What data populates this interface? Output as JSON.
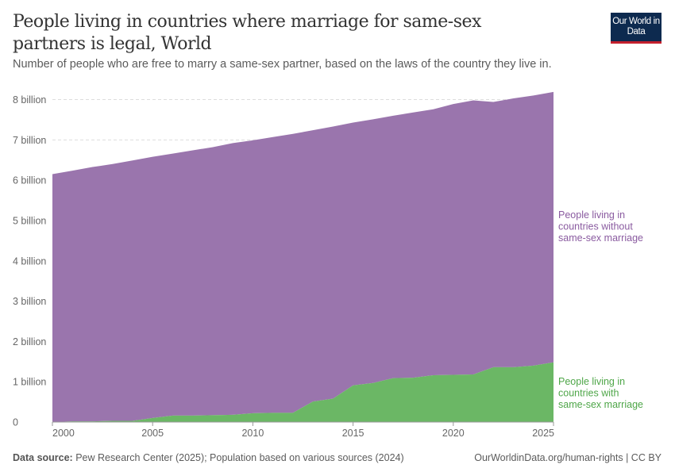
{
  "title": "People living in countries where marriage for same-sex partners is legal, World",
  "subtitle": "Number of people who are free to marry a same-sex partner, based on the laws of the country they live in.",
  "logo": "Our World in Data",
  "footer": {
    "source_label": "Data source:",
    "source_text": "Pew Research Center (2025); Population based on various sources (2024)",
    "right": "OurWorldinData.org/human-rights | CC BY"
  },
  "chart_data": {
    "type": "area",
    "stacked": true,
    "x": [
      2000,
      2001,
      2002,
      2003,
      2004,
      2005,
      2006,
      2007,
      2008,
      2009,
      2010,
      2011,
      2012,
      2013,
      2014,
      2015,
      2016,
      2017,
      2018,
      2019,
      2020,
      2021,
      2022,
      2023,
      2024,
      2025
    ],
    "series": [
      {
        "name": "People living in countries with same-sex marriage",
        "color": "#6bb765",
        "values": [
          0.0,
          0.016,
          0.016,
          0.03,
          0.03,
          0.1,
          0.16,
          0.16,
          0.17,
          0.18,
          0.22,
          0.23,
          0.23,
          0.51,
          0.58,
          0.91,
          0.97,
          1.09,
          1.1,
          1.16,
          1.17,
          1.18,
          1.36,
          1.36,
          1.4,
          1.48
        ]
      },
      {
        "name": "People living in countries without same-sex marriage",
        "color": "#9a75ad",
        "values": [
          6.15,
          6.22,
          6.31,
          6.37,
          6.46,
          6.48,
          6.5,
          6.58,
          6.65,
          6.74,
          6.77,
          6.84,
          6.92,
          6.73,
          6.75,
          6.52,
          6.54,
          6.51,
          6.58,
          6.6,
          6.72,
          6.8,
          6.58,
          6.67,
          6.7,
          6.71
        ]
      }
    ],
    "yticks": [
      0,
      1,
      2,
      3,
      4,
      5,
      6,
      7,
      8
    ],
    "ytick_labels": [
      "0",
      "1 billion",
      "2 billion",
      "3 billion",
      "4 billion",
      "5 billion",
      "6 billion",
      "7 billion",
      "8 billion"
    ],
    "xticks": [
      2000,
      2005,
      2010,
      2015,
      2020,
      2025
    ],
    "ylim": [
      0,
      8
    ],
    "xlim": [
      2000,
      2025
    ],
    "grid": "horizontal dashed",
    "legend_placement": "right (inline labels)",
    "labels": {
      "without": [
        "People living in",
        "countries without",
        "same-sex marriage"
      ],
      "with": [
        "People living in",
        "countries with",
        "same-sex marriage"
      ]
    }
  }
}
